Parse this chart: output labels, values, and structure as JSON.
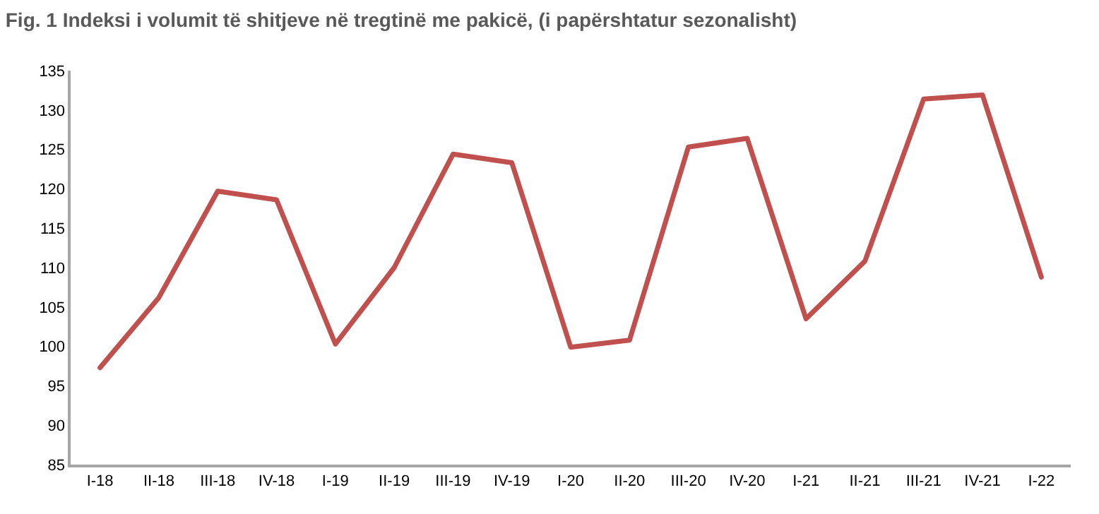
{
  "chart_data": {
    "type": "line",
    "title": "Fig. 1 Indeksi i volumit të shitjeve në tregtinë me pakicë, (i papërshtatur sezonalisht)",
    "categories": [
      "I-18",
      "II-18",
      "III-18",
      "IV-18",
      "I-19",
      "II-19",
      "III-19",
      "IV-19",
      "I-20",
      "II-20",
      "III-20",
      "IV-20",
      "I-21",
      "II-21",
      "III-21",
      "IV-21",
      "I-22"
    ],
    "series": [
      {
        "color": "#c0504d",
        "values": [
          97.3,
          106.2,
          119.7,
          118.6,
          100.3,
          110,
          124.4,
          123.3,
          99.9,
          100.8,
          125.3,
          126.4,
          103.5,
          110.8,
          131.4,
          131.9,
          108.8
        ]
      }
    ],
    "ylim": [
      85,
      135
    ],
    "yticks": [
      85,
      90,
      95,
      100,
      105,
      110,
      115,
      120,
      125,
      130,
      135
    ],
    "marker": "none",
    "line_style": "solid"
  }
}
